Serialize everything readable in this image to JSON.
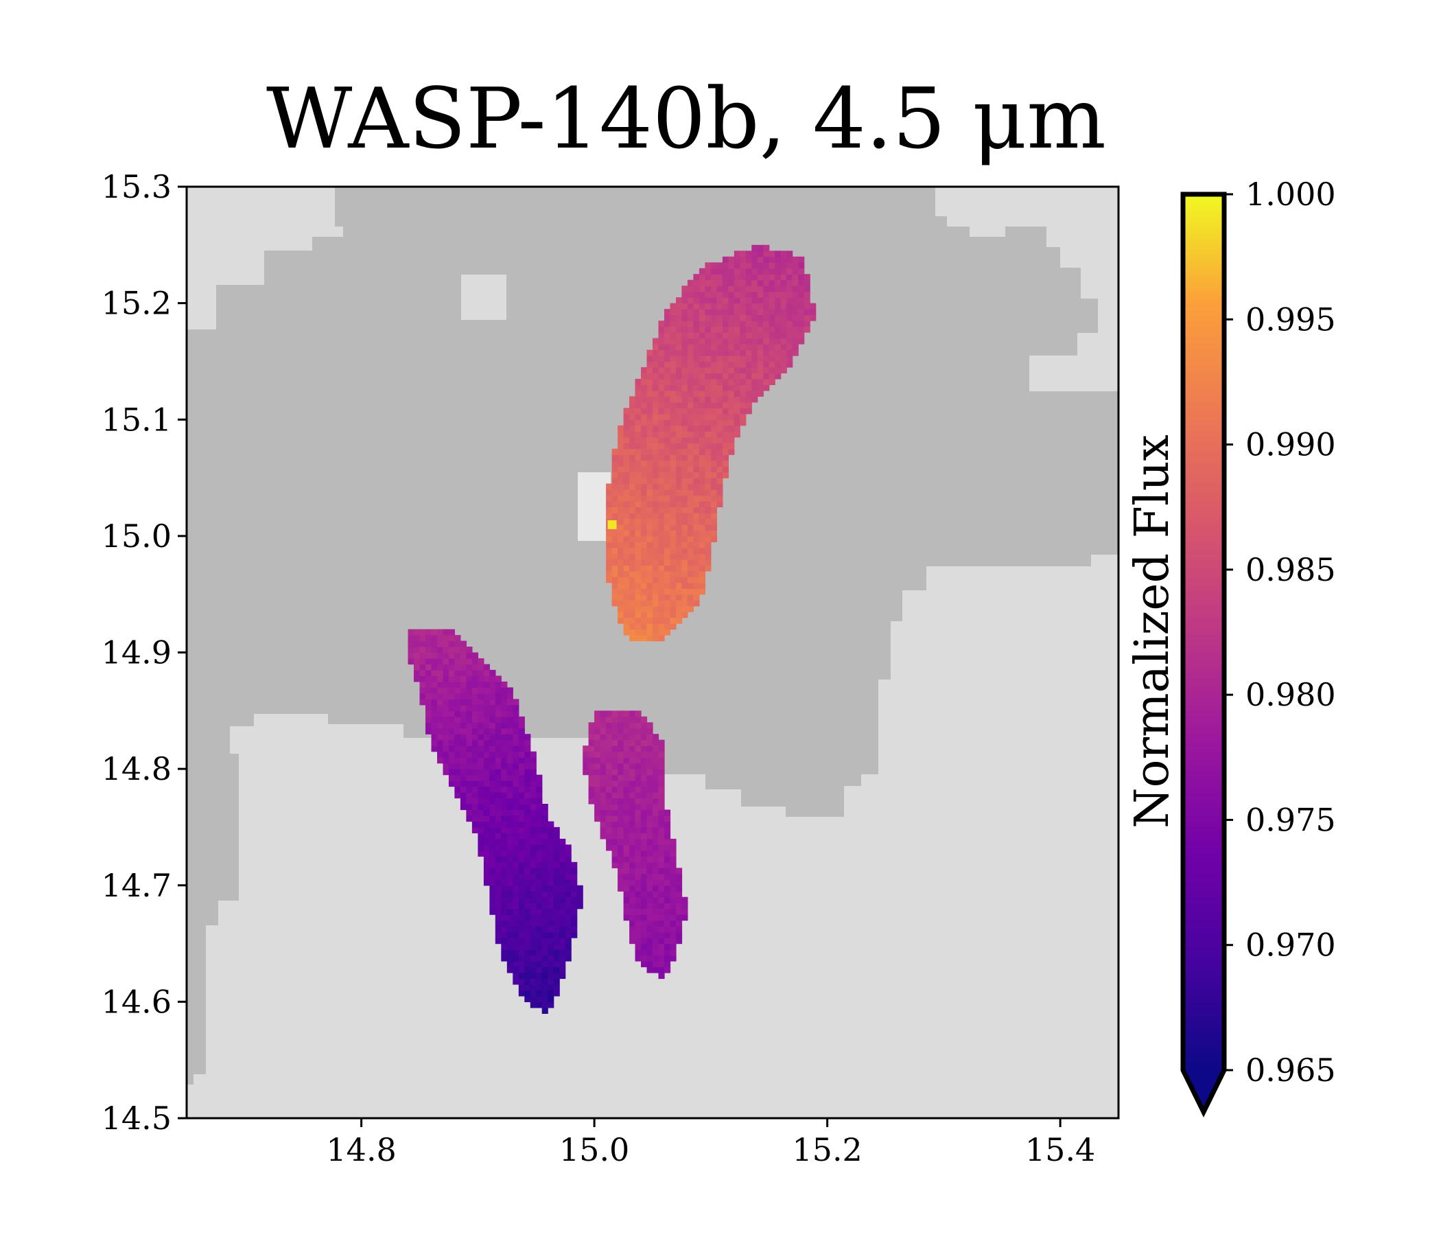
{
  "chart_data": {
    "type": "heatmap",
    "title": "WASP-140b, 4.5 μm",
    "xlabel": "",
    "ylabel": "",
    "xlim": [
      14.65,
      15.45
    ],
    "ylim": [
      14.5,
      15.3
    ],
    "x_ticks": [
      14.8,
      15.0,
      15.2,
      15.4
    ],
    "y_ticks": [
      14.5,
      14.6,
      14.7,
      14.8,
      14.9,
      15.0,
      15.1,
      15.2,
      15.3
    ],
    "x_tick_labels": [
      "14.8",
      "15.0",
      "15.2",
      "15.4"
    ],
    "y_tick_labels": [
      "14.5",
      "14.6",
      "14.7",
      "14.8",
      "14.9",
      "15.0",
      "15.1",
      "15.2",
      "15.3"
    ],
    "grid": false,
    "colormap": "plasma",
    "colorbar": {
      "label": "Normalized Flux",
      "min": 0.965,
      "max": 1.0,
      "extend": "min",
      "ticks": [
        0.965,
        0.97,
        0.975,
        0.98,
        0.985,
        0.99,
        0.995,
        1.0
      ],
      "tick_labels": [
        "0.965",
        "0.970",
        "0.975",
        "0.980",
        "0.985",
        "0.990",
        "0.995",
        "1.000"
      ]
    },
    "regions": [
      {
        "id": "upper-right-blob",
        "gradient_x": [
          15.0,
          15.19
        ],
        "gradient_y": [
          14.9,
          15.25
        ],
        "value_low": 0.993,
        "value_high": 0.981,
        "outline": [
          [
            15.03,
            14.91
          ],
          [
            15.06,
            14.91
          ],
          [
            15.09,
            14.94
          ],
          [
            15.1,
            14.98
          ],
          [
            15.11,
            15.04
          ],
          [
            15.12,
            15.08
          ],
          [
            15.14,
            15.12
          ],
          [
            15.17,
            15.15
          ],
          [
            15.19,
            15.19
          ],
          [
            15.18,
            15.24
          ],
          [
            15.14,
            15.25
          ],
          [
            15.09,
            15.23
          ],
          [
            15.06,
            15.19
          ],
          [
            15.04,
            15.14
          ],
          [
            15.02,
            15.09
          ],
          [
            15.01,
            15.03
          ],
          [
            15.01,
            14.97
          ],
          [
            15.02,
            14.93
          ]
        ]
      },
      {
        "id": "lower-left-blob",
        "gradient_x": [
          14.84,
          14.98
        ],
        "gradient_y": [
          14.92,
          14.59
        ],
        "value_low": 0.981,
        "value_high": 0.967,
        "outline": [
          [
            14.84,
            14.92
          ],
          [
            14.88,
            14.92
          ],
          [
            14.9,
            14.9
          ],
          [
            14.93,
            14.87
          ],
          [
            14.95,
            14.81
          ],
          [
            14.96,
            14.76
          ],
          [
            14.98,
            14.73
          ],
          [
            14.99,
            14.69
          ],
          [
            14.98,
            14.64
          ],
          [
            14.97,
            14.61
          ],
          [
            14.96,
            14.59
          ],
          [
            14.94,
            14.6
          ],
          [
            14.92,
            14.64
          ],
          [
            14.91,
            14.69
          ],
          [
            14.9,
            14.74
          ],
          [
            14.88,
            14.78
          ],
          [
            14.86,
            14.82
          ],
          [
            14.85,
            14.87
          ],
          [
            14.84,
            14.9
          ]
        ]
      },
      {
        "id": "lower-middle-blob",
        "gradient_x": [
          14.99,
          15.07
        ],
        "gradient_y": [
          14.85,
          14.62
        ],
        "value_low": 0.981,
        "value_high": 0.976,
        "outline": [
          [
            15.0,
            14.85
          ],
          [
            15.04,
            14.85
          ],
          [
            15.06,
            14.82
          ],
          [
            15.06,
            14.78
          ],
          [
            15.07,
            14.73
          ],
          [
            15.08,
            14.68
          ],
          [
            15.07,
            14.64
          ],
          [
            15.06,
            14.62
          ],
          [
            15.04,
            14.63
          ],
          [
            15.03,
            14.66
          ],
          [
            15.02,
            14.71
          ],
          [
            15.0,
            14.76
          ],
          [
            14.99,
            14.81
          ]
        ]
      }
    ],
    "hotspot": {
      "x": 15.015,
      "y": 15.01,
      "value": 0.999
    }
  }
}
